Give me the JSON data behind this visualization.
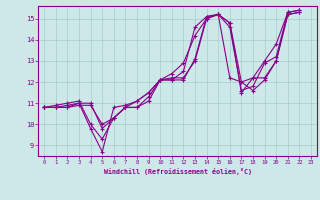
{
  "xlabel": "Windchill (Refroidissement éolien,°C)",
  "xlim": [
    -0.5,
    23.5
  ],
  "ylim": [
    8.5,
    15.6
  ],
  "xticks": [
    0,
    1,
    2,
    3,
    4,
    5,
    6,
    7,
    8,
    9,
    10,
    11,
    12,
    13,
    14,
    15,
    16,
    17,
    18,
    19,
    20,
    21,
    22,
    23
  ],
  "yticks": [
    9,
    10,
    11,
    12,
    13,
    14,
    15
  ],
  "bg_color": "#cce8e8",
  "line_color": "#880088",
  "grid_color": "#aacccc",
  "lines": [
    {
      "x": [
        0,
        1,
        2,
        3,
        4,
        5,
        6,
        7,
        8,
        9,
        10,
        11,
        12,
        13,
        14,
        15,
        16,
        17,
        18,
        19,
        20,
        21,
        22
      ],
      "y": [
        10.8,
        10.8,
        10.8,
        10.9,
        10.9,
        10.0,
        10.3,
        10.8,
        10.8,
        11.1,
        12.1,
        12.1,
        12.1,
        13.1,
        15.1,
        15.2,
        12.2,
        12.0,
        12.2,
        12.2,
        13.0,
        15.2,
        15.3
      ]
    },
    {
      "x": [
        0,
        1,
        2,
        3,
        4,
        5,
        6,
        7,
        8,
        9,
        10,
        11,
        12,
        13,
        14,
        15,
        16,
        17,
        18,
        19,
        20,
        21,
        22
      ],
      "y": [
        10.8,
        10.8,
        10.8,
        11.0,
        11.0,
        9.8,
        10.3,
        10.8,
        10.8,
        11.3,
        12.1,
        12.2,
        12.2,
        13.0,
        15.0,
        15.2,
        14.8,
        12.0,
        11.6,
        12.1,
        13.0,
        15.2,
        15.3
      ]
    },
    {
      "x": [
        0,
        1,
        2,
        3,
        4,
        5,
        6,
        7,
        8,
        9,
        10,
        11,
        12,
        13,
        14,
        15,
        16,
        17,
        18,
        19,
        20,
        21,
        22
      ],
      "y": [
        10.8,
        10.9,
        11.0,
        11.1,
        10.0,
        9.3,
        10.3,
        10.8,
        11.1,
        11.5,
        12.1,
        12.1,
        12.5,
        14.6,
        15.1,
        15.2,
        14.8,
        11.5,
        12.2,
        13.0,
        13.8,
        15.3,
        15.4
      ]
    },
    {
      "x": [
        0,
        1,
        2,
        3,
        4,
        5,
        6,
        7,
        8,
        9,
        10,
        11,
        12,
        13,
        14,
        15,
        16,
        17,
        18,
        19,
        20,
        21,
        22
      ],
      "y": [
        10.8,
        10.8,
        10.9,
        11.0,
        9.8,
        8.7,
        10.8,
        10.9,
        11.1,
        11.5,
        12.1,
        12.4,
        12.9,
        14.2,
        15.0,
        15.2,
        14.6,
        11.6,
        11.8,
        12.9,
        13.2,
        15.3,
        15.4
      ]
    }
  ]
}
